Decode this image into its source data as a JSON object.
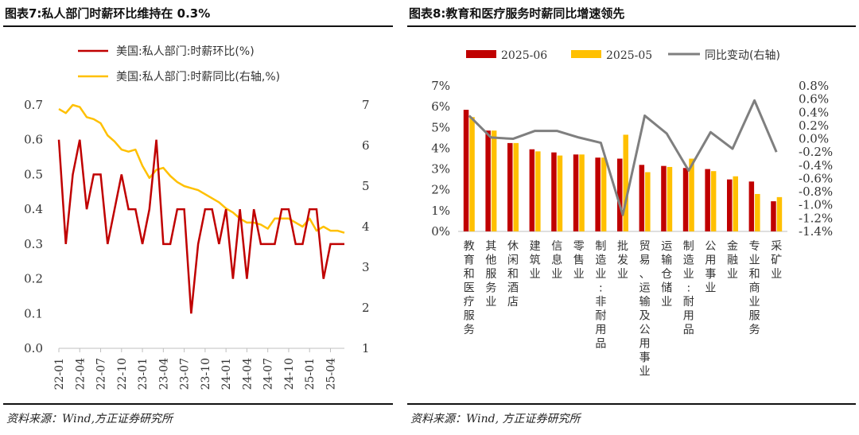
{
  "left": {
    "title": "图表7:私人部门时薪环比维持在 0.3%",
    "source": "资料来源：Wind,方正证券研究所"
  },
  "right": {
    "title": "图表8:教育和医疗服务时薪同比增速领先",
    "source": "资料来源：Wind, 方正证券研究所"
  },
  "colors": {
    "red": "#C00000",
    "yellow": "#FFC000",
    "gray": "#7F7F7F"
  },
  "chart_data": [
    {
      "type": "line",
      "series": [
        {
          "name": "美国:私人部门:时薪环比(%)",
          "axis": "left",
          "color": "#C00000",
          "values": [
            0.6,
            0.3,
            0.5,
            0.6,
            0.4,
            0.5,
            0.5,
            0.3,
            0.4,
            0.5,
            0.4,
            0.4,
            0.3,
            0.4,
            0.6,
            0.3,
            0.3,
            0.4,
            0.4,
            0.1,
            0.3,
            0.4,
            0.4,
            0.3,
            0.4,
            0.2,
            0.4,
            0.2,
            0.4,
            0.3,
            0.3,
            0.3,
            0.4,
            0.4,
            0.3,
            0.3,
            0.4,
            0.4,
            0.2,
            0.3,
            0.3,
            0.3
          ]
        },
        {
          "name": "美国:私人部门:时薪同比(右轴,%)",
          "axis": "right",
          "color": "#FFC000",
          "values": [
            6.9,
            6.8,
            7.0,
            6.95,
            6.7,
            6.65,
            6.55,
            6.25,
            6.1,
            5.9,
            5.85,
            5.9,
            5.5,
            5.2,
            5.4,
            5.45,
            5.25,
            5.1,
            5.0,
            4.95,
            4.9,
            4.8,
            4.7,
            4.6,
            4.45,
            4.35,
            4.2,
            4.1,
            4.1,
            4.05,
            3.95,
            4.2,
            4.2,
            4.2,
            4.1,
            4.0,
            4.2,
            3.9,
            4.0,
            3.9,
            3.9,
            3.85
          ]
        }
      ],
      "x_tick_labels": [
        "22-01",
        "22-04",
        "22-07",
        "22-10",
        "23-01",
        "23-04",
        "23-07",
        "23-10",
        "24-01",
        "24-04",
        "24-07",
        "24-10",
        "25-01",
        "25-04"
      ],
      "y_left_ticks": [
        "0.0",
        "0.1",
        "0.2",
        "0.3",
        "0.4",
        "0.5",
        "0.6",
        "0.7"
      ],
      "y_right_ticks": [
        "1",
        "2",
        "3",
        "4",
        "5",
        "6",
        "7"
      ],
      "ylim_left": [
        0,
        0.7
      ],
      "ylim_right": [
        1,
        7
      ],
      "legend": "top"
    },
    {
      "type": "bar",
      "categories": [
        "教育和医疗服务",
        "其他服务业",
        "休闲和酒店",
        "建筑业",
        "信息业",
        "零售业",
        "制造业:非耐用品",
        "批发业",
        "贸易、运输及公用事业",
        "运输仓储业",
        "制造业:耐用品",
        "公用事业",
        "金融业",
        "专业和商业服务",
        "采矿业"
      ],
      "series": [
        {
          "name": "2025-06",
          "axis": "left",
          "color": "#C00000",
          "values": [
            5.85,
            4.85,
            4.25,
            3.95,
            3.8,
            3.7,
            3.55,
            3.5,
            3.2,
            3.15,
            3.05,
            3.0,
            2.5,
            2.4,
            1.45
          ]
        },
        {
          "name": "2025-05",
          "axis": "left",
          "color": "#FFC000",
          "values": [
            5.5,
            4.85,
            4.25,
            3.85,
            3.65,
            3.7,
            3.55,
            4.65,
            2.85,
            3.1,
            3.5,
            2.9,
            2.65,
            1.8,
            1.65
          ]
        },
        {
          "name": "同比变动(右轴)",
          "axis": "right",
          "type": "line",
          "color": "#7F7F7F",
          "values": [
            0.35,
            0.02,
            0.0,
            0.12,
            0.12,
            0.02,
            -0.06,
            -1.15,
            0.35,
            0.08,
            -0.48,
            0.1,
            -0.15,
            0.58,
            -0.2
          ]
        }
      ],
      "y_left_ticks": [
        "0%",
        "1%",
        "2%",
        "3%",
        "4%",
        "5%",
        "6%",
        "7%"
      ],
      "y_right_ticks": [
        "-1.4%",
        "-1.2%",
        "-1.0%",
        "-0.8%",
        "-0.6%",
        "-0.4%",
        "-0.2%",
        "0.0%",
        "0.2%",
        "0.4%",
        "0.6%",
        "0.8%"
      ],
      "ylim_left": [
        0,
        7
      ],
      "ylim_right": [
        -1.4,
        0.8
      ],
      "legend": "top"
    }
  ]
}
